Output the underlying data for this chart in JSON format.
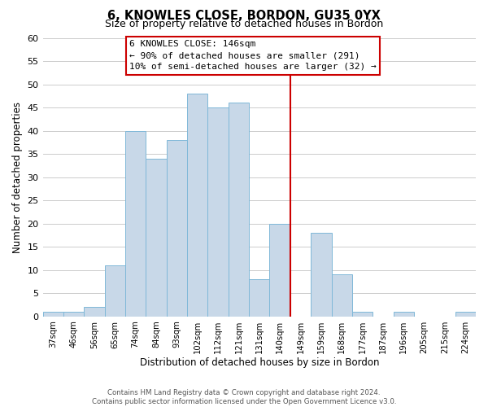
{
  "title1": "6, KNOWLES CLOSE, BORDON, GU35 0YX",
  "title2": "Size of property relative to detached houses in Bordon",
  "xlabel": "Distribution of detached houses by size in Bordon",
  "ylabel": "Number of detached properties",
  "categories": [
    "37sqm",
    "46sqm",
    "56sqm",
    "65sqm",
    "74sqm",
    "84sqm",
    "93sqm",
    "102sqm",
    "112sqm",
    "121sqm",
    "131sqm",
    "140sqm",
    "149sqm",
    "159sqm",
    "168sqm",
    "177sqm",
    "187sqm",
    "196sqm",
    "205sqm",
    "215sqm",
    "224sqm"
  ],
  "values": [
    1,
    1,
    2,
    11,
    40,
    34,
    38,
    48,
    45,
    46,
    8,
    20,
    0,
    18,
    9,
    1,
    0,
    1,
    0,
    0,
    1
  ],
  "bar_color": "#c8d8e8",
  "bar_edge_color": "#7fb8d8",
  "background_color": "#ffffff",
  "grid_color": "#cccccc",
  "vline_color": "#cc0000",
  "annotation_title": "6 KNOWLES CLOSE: 146sqm",
  "annotation_line1": "← 90% of detached houses are smaller (291)",
  "annotation_line2": "10% of semi-detached houses are larger (32) →",
  "annotation_box_color": "#ffffff",
  "annotation_box_edge": "#cc0000",
  "footer1": "Contains HM Land Registry data © Crown copyright and database right 2024.",
  "footer2": "Contains public sector information licensed under the Open Government Licence v3.0.",
  "ylim": [
    0,
    60
  ],
  "yticks": [
    0,
    5,
    10,
    15,
    20,
    25,
    30,
    35,
    40,
    45,
    50,
    55,
    60
  ]
}
